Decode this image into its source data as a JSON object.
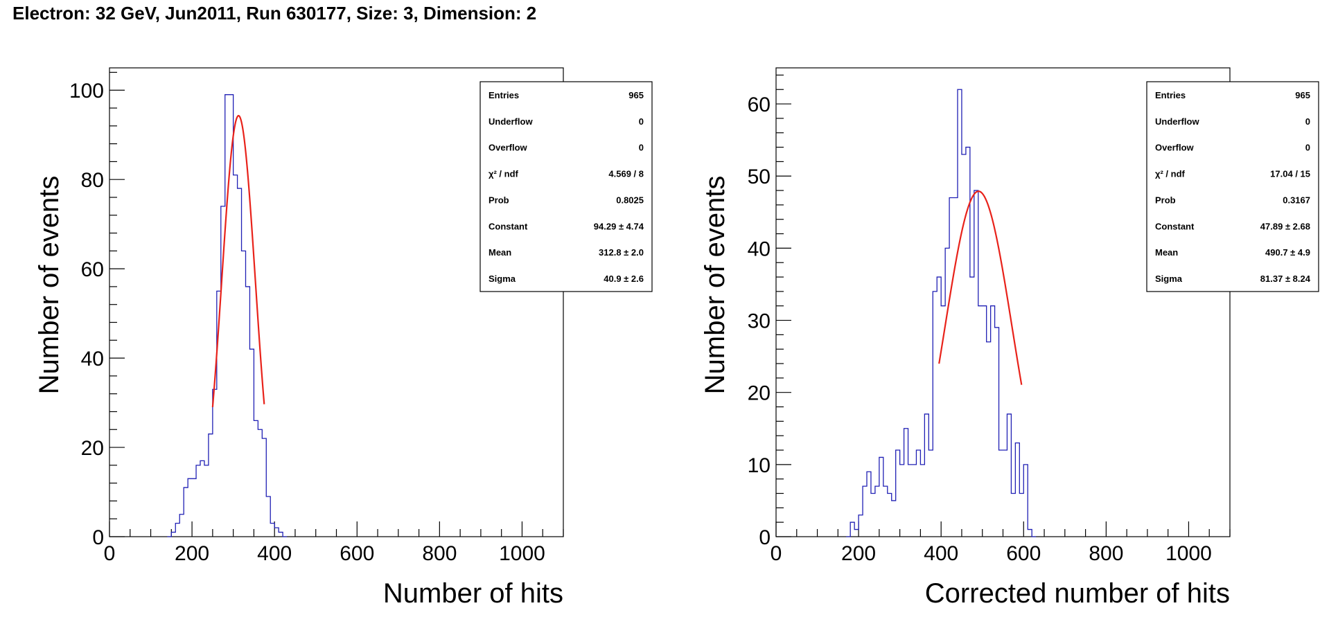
{
  "page": {
    "title": "Electron: 32 GeV, Jun2011, Run 630177, Size: 3, Dimension: 2"
  },
  "colors": {
    "histogram": "#1f1fb4",
    "fit": "#e8221a",
    "axis": "#000000"
  },
  "chart_data": [
    {
      "type": "histogram",
      "xlabel": "Number of hits",
      "ylabel": "Number of events",
      "xlim": [
        0,
        1100
      ],
      "ylim": [
        0,
        105
      ],
      "xticks": [
        0,
        200,
        400,
        600,
        800,
        1000
      ],
      "yticks": [
        0,
        20,
        40,
        60,
        80,
        100
      ],
      "bin_width": 10,
      "bin_start": 140,
      "counts": [
        0,
        1,
        3,
        5,
        11,
        13,
        13,
        16,
        17,
        16,
        23,
        33,
        55,
        74,
        99,
        99,
        81,
        78,
        64,
        56,
        42,
        26,
        24,
        22,
        9,
        3,
        2,
        1,
        0
      ],
      "fit": {
        "type": "gaussian",
        "range": [
          250,
          375
        ],
        "constant": 94.29,
        "mean": 312.8,
        "sigma": 40.9
      },
      "stats_box": [
        {
          "label": "Entries",
          "value": "965"
        },
        {
          "label": "Underflow",
          "value": "0"
        },
        {
          "label": "Overflow",
          "value": "0"
        },
        {
          "label": "χ² / ndf",
          "value": "4.569 / 8"
        },
        {
          "label": "Prob",
          "value": "0.8025"
        },
        {
          "label": "Constant",
          "value": "94.29 ± 4.74"
        },
        {
          "label": "Mean",
          "value": "312.8 ± 2.0"
        },
        {
          "label": "Sigma",
          "value": "40.9 ± 2.6"
        }
      ]
    },
    {
      "type": "histogram",
      "xlabel": "Corrected number of hits",
      "ylabel": "Number of events",
      "xlim": [
        0,
        1100
      ],
      "ylim": [
        0,
        65
      ],
      "xticks": [
        0,
        200,
        400,
        600,
        800,
        1000
      ],
      "yticks": [
        0,
        10,
        20,
        30,
        40,
        50,
        60
      ],
      "bin_width": 10,
      "bin_start": 170,
      "counts": [
        0,
        2,
        1,
        3,
        7,
        9,
        6,
        7,
        11,
        7,
        6,
        5,
        12,
        10,
        15,
        10,
        10,
        12,
        10,
        17,
        12,
        34,
        36,
        32,
        40,
        47,
        47,
        62,
        53,
        54,
        36,
        48,
        32,
        32,
        27,
        32,
        29,
        12,
        12,
        17,
        6,
        13,
        6,
        10,
        1,
        0
      ],
      "fit": {
        "type": "gaussian",
        "range": [
          395,
          595
        ],
        "constant": 47.89,
        "mean": 490.7,
        "sigma": 81.37
      },
      "stats_box": [
        {
          "label": "Entries",
          "value": "965"
        },
        {
          "label": "Underflow",
          "value": "0"
        },
        {
          "label": "Overflow",
          "value": "0"
        },
        {
          "label": "χ² / ndf",
          "value": "17.04 / 15"
        },
        {
          "label": "Prob",
          "value": "0.3167"
        },
        {
          "label": "Constant",
          "value": "47.89 ± 2.68"
        },
        {
          "label": "Mean",
          "value": "490.7 ± 4.9"
        },
        {
          "label": "Sigma",
          "value": "81.37 ± 8.24"
        }
      ]
    }
  ]
}
